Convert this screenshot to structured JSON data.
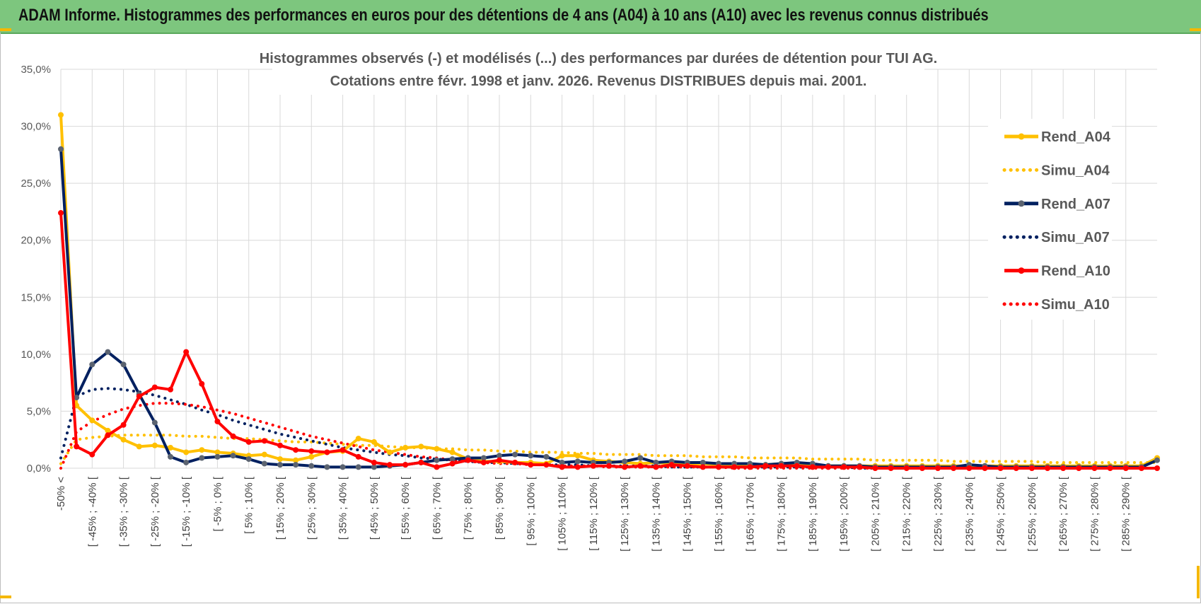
{
  "banner": {
    "title": "ADAM Informe. Histogrammes des performances en euros pour des détentions de 4 ans (A04) à 10 ans (A10) avec les revenus connus distribués",
    "background": "#7dc67e"
  },
  "chart_data": {
    "type": "line",
    "title": "Histogrammes observés (-) et modélisés (...) des performances par durées de détention pour TUI AG.",
    "subtitle": "Cotations entre févr. 1998 et janv. 2026. Revenus DISTRIBUES depuis mai. 2001.",
    "xlabel": "",
    "ylabel": "",
    "ylim": [
      0,
      35
    ],
    "yticks": [
      "0,0%",
      "5,0%",
      "10,0%",
      "15,0%",
      "20,0%",
      "25,0%",
      "30,0%",
      "35,0%"
    ],
    "grid": true,
    "legend_position": "right",
    "x_tick_labels": [
      "-50% <",
      "[ -45% ; -40% [",
      "[ -35% ; -30% [",
      "[ -25% ; -20% [",
      "[ -15% ; -10% [",
      "[ -5% ; 0% [",
      "[ 5% ; 10% [",
      "[ 15% ; 20% [",
      "[ 25% ; 30% [",
      "[ 35% ; 40% [",
      "[ 45% ; 50% [",
      "[ 55% ; 60% [",
      "[ 65% ; 70% [",
      "[ 75% ; 80% [",
      "[ 85% ; 90% [",
      "[ 95% ; 100% [",
      "[ 105% ; 110% [",
      "[ 115% ; 120% [",
      "[ 125% ; 130% [",
      "[ 135% ; 140% [",
      "[ 145% ; 150% [",
      "[ 155% ; 160% [",
      "[ 165% ; 170% [",
      "[ 175% ; 180% [",
      "[ 185% ; 190% [",
      "[ 195% ; 200% [",
      "[ 205% ; 210% [",
      "[ 215% ; 220% [",
      "[ 225% ; 230% [",
      "[ 235% ; 240% [",
      "[ 245% ; 250% [",
      "[ 255% ; 260% [",
      "[ 265% ; 270% [",
      "[ 275% ; 280% [",
      "[ 285% ; 290% ["
    ],
    "series": [
      {
        "name": "Rend_A04",
        "style": "solid",
        "color": "#ffc000",
        "values": [
          31.0,
          5.5,
          4.2,
          3.3,
          2.5,
          1.9,
          2.0,
          1.8,
          1.4,
          1.6,
          1.4,
          1.3,
          1.1,
          1.2,
          0.8,
          0.7,
          1.0,
          1.4,
          1.5,
          2.6,
          2.3,
          1.4,
          1.8,
          1.9,
          1.7,
          1.4,
          0.8,
          0.6,
          0.6,
          0.5,
          0.5,
          0.4,
          1.1,
          1.1,
          0.7,
          0.6,
          0.5,
          0.4,
          0.5,
          0.4,
          0.3,
          0.4,
          0.3,
          0.3,
          0.3,
          0.3,
          0.4,
          0.3,
          0.2,
          0.2,
          0.2,
          0.2,
          0.2,
          0.2,
          0.2,
          0.2,
          0.2,
          0.2,
          0.2,
          0.2,
          0.2,
          0.2,
          0.2,
          0.2,
          0.2,
          0.2,
          0.2,
          0.2,
          0.2,
          0.2,
          0.9
        ]
      },
      {
        "name": "Simu_A04",
        "style": "dotted",
        "color": "#ffc000",
        "values": [
          0.4,
          2.5,
          2.7,
          2.8,
          2.9,
          2.9,
          2.9,
          2.9,
          2.8,
          2.8,
          2.7,
          2.6,
          2.6,
          2.5,
          2.4,
          2.3,
          2.3,
          2.2,
          2.1,
          2.0,
          2.0,
          1.9,
          1.8,
          1.8,
          1.7,
          1.7,
          1.6,
          1.6,
          1.5,
          1.5,
          1.4,
          1.4,
          1.4,
          1.3,
          1.3,
          1.2,
          1.2,
          1.2,
          1.1,
          1.1,
          1.1,
          1.0,
          1.0,
          1.0,
          0.9,
          0.9,
          0.9,
          0.9,
          0.8,
          0.8,
          0.8,
          0.8,
          0.7,
          0.7,
          0.7,
          0.7,
          0.7,
          0.6,
          0.6,
          0.6,
          0.6,
          0.6,
          0.6,
          0.5,
          0.5,
          0.5,
          0.5,
          0.5,
          0.5,
          0.5,
          0.5
        ]
      },
      {
        "name": "Rend_A07",
        "style": "solid",
        "color": "#002060",
        "values": [
          28.0,
          6.2,
          9.1,
          10.2,
          9.1,
          6.5,
          4.0,
          1.0,
          0.5,
          0.9,
          1.0,
          1.1,
          0.8,
          0.4,
          0.3,
          0.3,
          0.2,
          0.1,
          0.1,
          0.1,
          0.1,
          0.2,
          0.3,
          0.5,
          0.7,
          0.8,
          0.9,
          0.9,
          1.1,
          1.2,
          1.1,
          1.0,
          0.5,
          0.6,
          0.5,
          0.5,
          0.6,
          0.9,
          0.5,
          0.6,
          0.5,
          0.5,
          0.4,
          0.4,
          0.4,
          0.3,
          0.4,
          0.5,
          0.4,
          0.2,
          0.2,
          0.2,
          0.1,
          0.1,
          0.1,
          0.1,
          0.1,
          0.1,
          0.3,
          0.2,
          0.1,
          0.1,
          0.1,
          0.1,
          0.1,
          0.1,
          0.1,
          0.1,
          0.1,
          0.1,
          0.7
        ]
      },
      {
        "name": "Simu_A07",
        "style": "dotted",
        "color": "#002060",
        "values": [
          0.9,
          6.3,
          6.9,
          7.0,
          6.9,
          6.7,
          6.4,
          6.0,
          5.6,
          5.1,
          4.7,
          4.2,
          3.8,
          3.4,
          3.0,
          2.7,
          2.4,
          2.1,
          1.8,
          1.6,
          1.4,
          1.2,
          1.1,
          0.9,
          0.8,
          0.7,
          0.6,
          0.5,
          0.5,
          0.4,
          0.4,
          0.3,
          0.3,
          0.3,
          0.2,
          0.2,
          0.2,
          0.2,
          0.2,
          0.1,
          0.1,
          0.1,
          0.1,
          0.1,
          0.1,
          0.1,
          0.1,
          0.1,
          0.1,
          0.1,
          0.1,
          0.0,
          0.0,
          0.0,
          0.0,
          0.0,
          0.0,
          0.0,
          0.0,
          0.0,
          0.0,
          0.0,
          0.0,
          0.0,
          0.0,
          0.0,
          0.0,
          0.0,
          0.0,
          0.0,
          0.0
        ]
      },
      {
        "name": "Rend_A10",
        "style": "solid",
        "color": "#ff0000",
        "values": [
          22.4,
          1.9,
          1.2,
          2.9,
          3.8,
          6.3,
          7.1,
          6.9,
          10.2,
          7.4,
          4.1,
          2.8,
          2.3,
          2.4,
          2.0,
          1.6,
          1.5,
          1.4,
          1.6,
          1.0,
          0.5,
          0.3,
          0.3,
          0.5,
          0.1,
          0.4,
          0.7,
          0.5,
          0.7,
          0.5,
          0.3,
          0.3,
          0.1,
          0.1,
          0.2,
          0.2,
          0.1,
          0.2,
          0.1,
          0.3,
          0.2,
          0.1,
          0.1,
          0.1,
          0.1,
          0.2,
          0.2,
          0.2,
          0.1,
          0.1,
          0.1,
          0.1,
          0.0,
          0.0,
          0.0,
          0.0,
          0.0,
          0.0,
          0.0,
          0.0,
          0.0,
          0.0,
          0.0,
          0.0,
          0.0,
          0.0,
          0.0,
          0.0,
          0.0,
          0.0,
          0.0
        ]
      },
      {
        "name": "Simu_A10",
        "style": "dotted",
        "color": "#ff0000",
        "values": [
          0.0,
          3.2,
          4.1,
          4.7,
          5.2,
          5.5,
          5.7,
          5.7,
          5.6,
          5.4,
          5.1,
          4.8,
          4.4,
          4.0,
          3.6,
          3.2,
          2.8,
          2.5,
          2.2,
          1.9,
          1.6,
          1.4,
          1.2,
          1.0,
          0.9,
          0.7,
          0.6,
          0.5,
          0.4,
          0.4,
          0.3,
          0.3,
          0.2,
          0.2,
          0.2,
          0.1,
          0.1,
          0.1,
          0.1,
          0.1,
          0.1,
          0.1,
          0.1,
          0.0,
          0.0,
          0.0,
          0.0,
          0.0,
          0.0,
          0.0,
          0.0,
          0.0,
          0.0,
          0.0,
          0.0,
          0.0,
          0.0,
          0.0,
          0.0,
          0.0,
          0.0,
          0.0,
          0.0,
          0.0,
          0.0,
          0.0,
          0.0,
          0.0,
          0.0,
          0.0,
          0.0
        ]
      }
    ]
  }
}
